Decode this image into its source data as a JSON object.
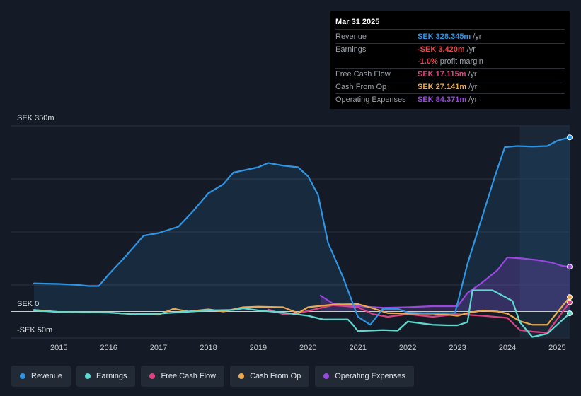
{
  "tooltip": {
    "date": "Mar 31 2025",
    "rows": [
      {
        "label": "Revenue",
        "value": "SEK 328.345m",
        "unit": "/yr",
        "color": "#2f95e3"
      },
      {
        "label": "Earnings",
        "value": "-SEK 3.420m",
        "unit": "/yr",
        "color": "#e8484a"
      },
      {
        "label": "",
        "value": "-1.0%",
        "unit": "profit margin",
        "color": "#e8484a"
      },
      {
        "label": "Free Cash Flow",
        "value": "SEK 17.115m",
        "unit": "/yr",
        "color": "#d9437f"
      },
      {
        "label": "Cash From Op",
        "value": "SEK 27.141m",
        "unit": "/yr",
        "color": "#eaaa50"
      },
      {
        "label": "Operating Expenses",
        "value": "SEK 84.371m",
        "unit": "/yr",
        "color": "#9a47e0"
      }
    ]
  },
  "chart_data": {
    "type": "area",
    "title": "",
    "ylabel_top": "SEK 350m",
    "ylabel_zero": "SEK 0",
    "ylabel_bottom": "-SEK 50m",
    "ylim": [
      -50,
      350
    ],
    "xlim": [
      2014.5,
      2025.25
    ],
    "x_ticks": [
      "2015",
      "2016",
      "2017",
      "2018",
      "2019",
      "2020",
      "2021",
      "2022",
      "2023",
      "2024",
      "2025"
    ],
    "forecast_start": 2024.25,
    "series": [
      {
        "name": "Revenue",
        "color": "#2f95e3",
        "fill": true,
        "points": [
          [
            2014.5,
            53
          ],
          [
            2015,
            52
          ],
          [
            2015.4,
            50
          ],
          [
            2015.6,
            48
          ],
          [
            2015.8,
            48
          ],
          [
            2016,
            70
          ],
          [
            2016.3,
            100
          ],
          [
            2016.7,
            143
          ],
          [
            2017,
            148
          ],
          [
            2017.4,
            160
          ],
          [
            2017.7,
            190
          ],
          [
            2018,
            223
          ],
          [
            2018.3,
            240
          ],
          [
            2018.5,
            262
          ],
          [
            2019,
            272
          ],
          [
            2019.2,
            280
          ],
          [
            2019.5,
            275
          ],
          [
            2019.8,
            272
          ],
          [
            2020,
            255
          ],
          [
            2020.2,
            220
          ],
          [
            2020.4,
            130
          ],
          [
            2020.7,
            65
          ],
          [
            2021,
            -10
          ],
          [
            2021.25,
            -25
          ],
          [
            2021.5,
            5
          ],
          [
            2021.8,
            5
          ],
          [
            2022,
            -2
          ],
          [
            2022.3,
            -3
          ],
          [
            2022.7,
            -3
          ],
          [
            2022.95,
            -3
          ],
          [
            2023.2,
            90
          ],
          [
            2023.5,
            180
          ],
          [
            2023.75,
            255
          ],
          [
            2023.95,
            310
          ],
          [
            2024.2,
            312
          ],
          [
            2024.5,
            311
          ],
          [
            2024.8,
            312
          ],
          [
            2025,
            322
          ],
          [
            2025.25,
            328.345
          ]
        ]
      },
      {
        "name": "Earnings",
        "color": "#5fd8cf",
        "fill": false,
        "points": [
          [
            2014.5,
            2
          ],
          [
            2015,
            -1
          ],
          [
            2016,
            -2
          ],
          [
            2016.5,
            -5
          ],
          [
            2017,
            -4
          ],
          [
            2017.5,
            -1
          ],
          [
            2018,
            2
          ],
          [
            2018.5,
            3
          ],
          [
            2018.7,
            6
          ],
          [
            2019,
            2
          ],
          [
            2019.5,
            -2
          ],
          [
            2020,
            -8
          ],
          [
            2020.3,
            -15
          ],
          [
            2020.8,
            -15
          ],
          [
            2020.9,
            -25
          ],
          [
            2021,
            -37
          ],
          [
            2021.5,
            -35
          ],
          [
            2021.8,
            -36
          ],
          [
            2022,
            -19
          ],
          [
            2022.5,
            -25
          ],
          [
            2022.8,
            -26
          ],
          [
            2023,
            -26
          ],
          [
            2023.2,
            -20
          ],
          [
            2023.3,
            40
          ],
          [
            2023.7,
            40
          ],
          [
            2023.9,
            30
          ],
          [
            2024.1,
            20
          ],
          [
            2024.25,
            -20
          ],
          [
            2024.5,
            -48
          ],
          [
            2024.8,
            -42
          ],
          [
            2025.25,
            -3.42
          ]
        ]
      },
      {
        "name": "Free Cash Flow",
        "color": "#d9437f",
        "fill": false,
        "points": [
          [
            2019.2,
            4
          ],
          [
            2019.5,
            -5
          ],
          [
            2019.8,
            -3
          ],
          [
            2020,
            1
          ],
          [
            2020.5,
            12
          ],
          [
            2021,
            8
          ],
          [
            2021.3,
            -5
          ],
          [
            2021.6,
            -10
          ],
          [
            2022,
            -5
          ],
          [
            2022.5,
            -10
          ],
          [
            2023,
            -5
          ],
          [
            2023.5,
            -8
          ],
          [
            2024,
            -12
          ],
          [
            2024.25,
            -35
          ],
          [
            2024.5,
            -38
          ],
          [
            2024.8,
            -40
          ],
          [
            2025.25,
            17.115
          ]
        ]
      },
      {
        "name": "Cash From Op",
        "color": "#eaaa50",
        "fill": false,
        "points": [
          [
            2014.5,
            3
          ],
          [
            2015,
            -1
          ],
          [
            2016,
            -2
          ],
          [
            2016.5,
            -5
          ],
          [
            2017,
            -6
          ],
          [
            2017.3,
            5
          ],
          [
            2017.6,
            0
          ],
          [
            2018,
            4
          ],
          [
            2018.3,
            0
          ],
          [
            2018.7,
            8
          ],
          [
            2019,
            9
          ],
          [
            2019.5,
            8
          ],
          [
            2019.8,
            -3
          ],
          [
            2020,
            8
          ],
          [
            2020.5,
            13
          ],
          [
            2021,
            14
          ],
          [
            2021.3,
            6
          ],
          [
            2021.6,
            -3
          ],
          [
            2022,
            -4
          ],
          [
            2022.5,
            -4
          ],
          [
            2022.8,
            -6
          ],
          [
            2023,
            -8
          ],
          [
            2023.2,
            -3
          ],
          [
            2023.5,
            2
          ],
          [
            2023.8,
            0
          ],
          [
            2024,
            -4
          ],
          [
            2024.25,
            -18
          ],
          [
            2024.5,
            -25
          ],
          [
            2024.8,
            -25
          ],
          [
            2025.25,
            27.141
          ]
        ]
      },
      {
        "name": "Operating Expenses",
        "color": "#9a47e0",
        "fill": true,
        "points": [
          [
            2020.25,
            30
          ],
          [
            2020.5,
            15
          ],
          [
            2021,
            10
          ],
          [
            2021.5,
            7
          ],
          [
            2022,
            8
          ],
          [
            2022.5,
            10
          ],
          [
            2023,
            10
          ],
          [
            2023.2,
            35
          ],
          [
            2023.5,
            55
          ],
          [
            2023.8,
            78
          ],
          [
            2024,
            102
          ],
          [
            2024.3,
            100
          ],
          [
            2024.6,
            97
          ],
          [
            2024.9,
            92
          ],
          [
            2025.1,
            86
          ],
          [
            2025.25,
            84.371
          ]
        ]
      }
    ]
  },
  "legend": {
    "items": [
      {
        "label": "Revenue",
        "color": "#2f95e3"
      },
      {
        "label": "Earnings",
        "color": "#5fd8cf"
      },
      {
        "label": "Free Cash Flow",
        "color": "#d9437f"
      },
      {
        "label": "Cash From Op",
        "color": "#eaaa50"
      },
      {
        "label": "Operating Expenses",
        "color": "#9a47e0"
      }
    ]
  }
}
